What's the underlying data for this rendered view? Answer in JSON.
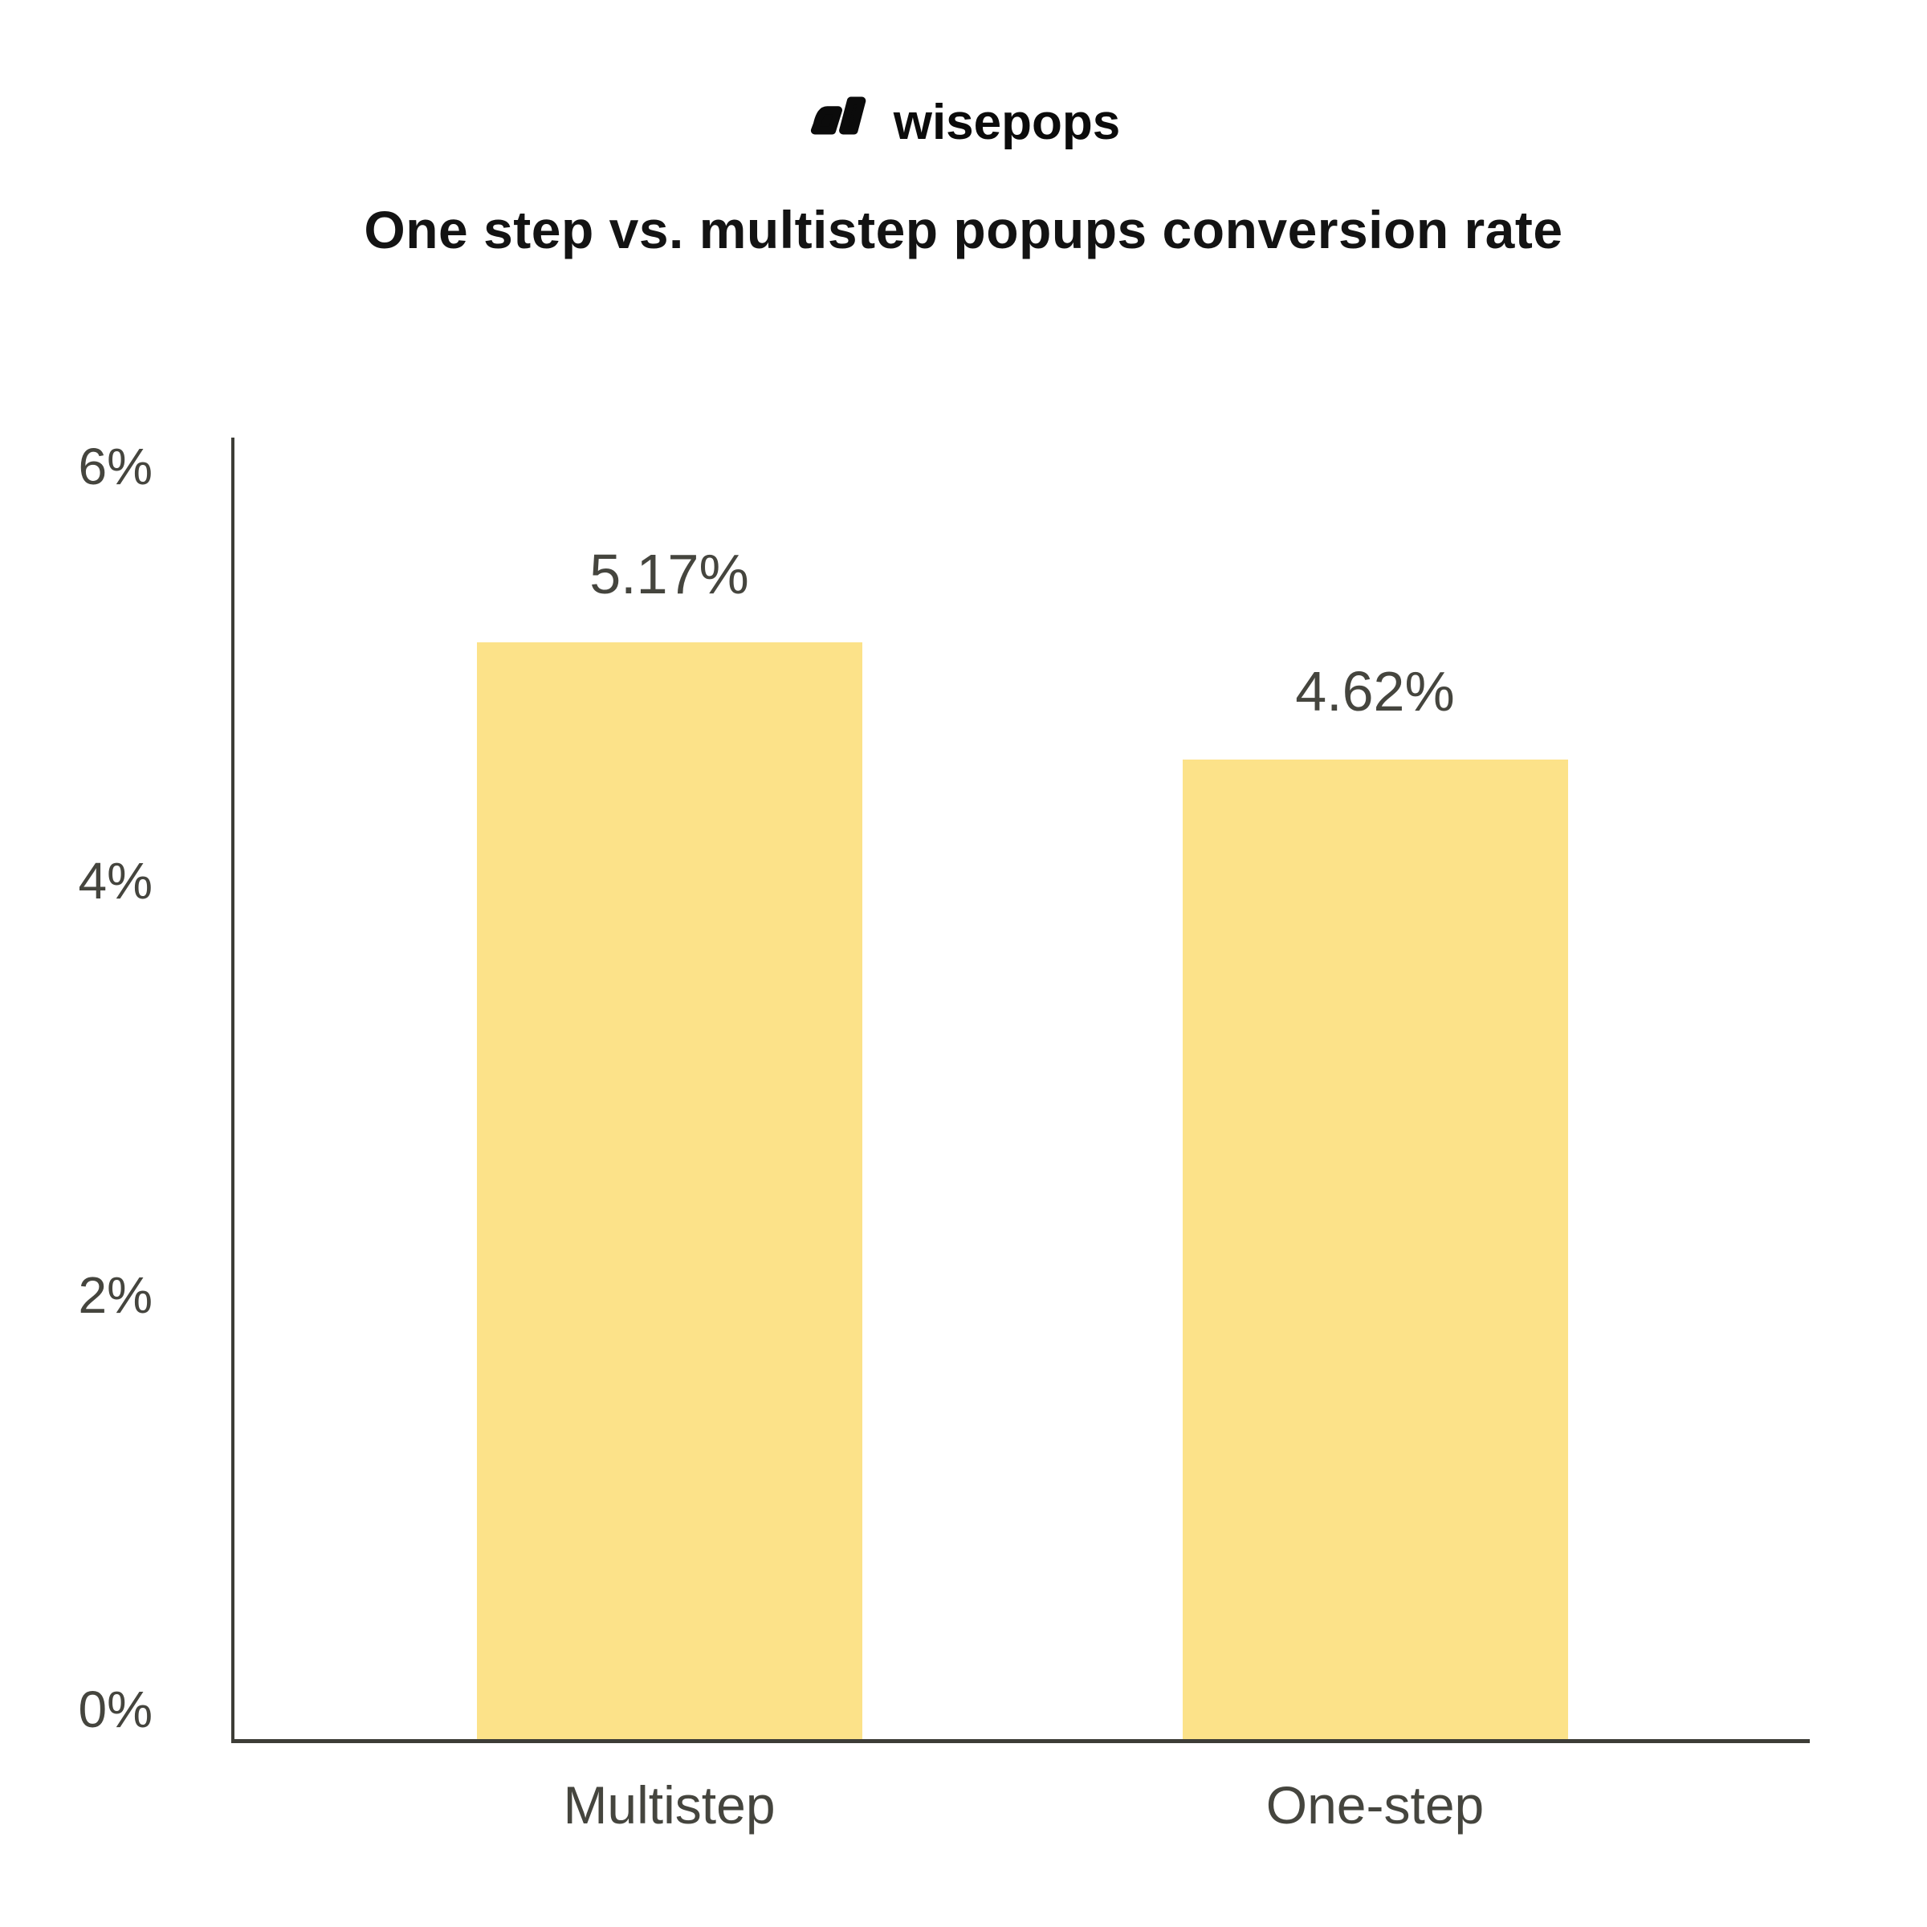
{
  "brand": {
    "logo_text": "wisepops",
    "logo_color": "#0b0b0b"
  },
  "chart_data": {
    "type": "bar",
    "title": "One step vs. multistep popups conversion rate",
    "categories": [
      "Multistep",
      "One-step"
    ],
    "values": [
      5.17,
      4.62
    ],
    "value_labels": [
      "5.17%",
      "4.62%"
    ],
    "ylim": [
      0,
      6
    ],
    "yticks": [
      {
        "value": 6,
        "label": "6%"
      },
      {
        "value": 4,
        "label": "4%"
      },
      {
        "value": 2,
        "label": "2%"
      },
      {
        "value": 0,
        "label": "0%"
      }
    ],
    "bar_color": "#FCE289",
    "axis_color": "#3D3D37",
    "label_color": "#45453E",
    "grid": false,
    "legend": false
  }
}
